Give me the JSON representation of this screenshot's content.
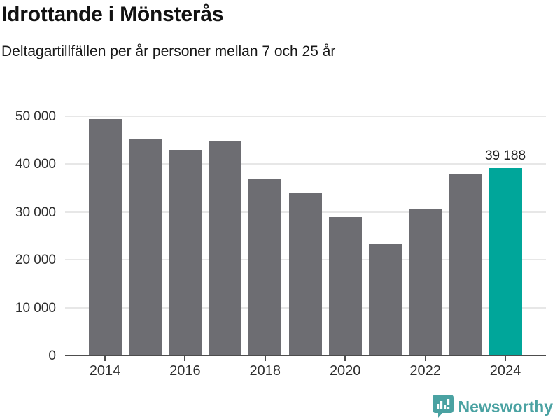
{
  "header": {
    "title": "Idrottande i Mönsterås",
    "subtitle": "Deltagartillfällen per år personer mellan 7 och 25 år"
  },
  "chart_data": {
    "type": "bar",
    "title": "Idrottande i Mönsterås",
    "subtitle": "Deltagartillfällen per år personer mellan 7 och 25 år",
    "categories": [
      2014,
      2015,
      2016,
      2017,
      2018,
      2019,
      2020,
      2021,
      2022,
      2023,
      2024
    ],
    "values": [
      49500,
      45300,
      43000,
      44900,
      36900,
      33900,
      29000,
      23400,
      30550,
      37950,
      39188
    ],
    "highlighted_category": 2024,
    "value_label": {
      "category": 2024,
      "text": "39 188"
    },
    "xlabel": "",
    "ylabel": "",
    "ylim": [
      0,
      50000
    ],
    "grid": true,
    "legend": "none",
    "y_ticks": [
      {
        "value": 0,
        "label": "0"
      },
      {
        "value": 10000,
        "label": "10 000"
      },
      {
        "value": 20000,
        "label": "20 000"
      },
      {
        "value": 30000,
        "label": "30 000"
      },
      {
        "value": 40000,
        "label": "40 000"
      },
      {
        "value": 50000,
        "label": "50 000"
      }
    ],
    "x_tick_labels": [
      "2014",
      "2016",
      "2018",
      "2020",
      "2022",
      "2024"
    ],
    "colors": {
      "bar": "#6d6d72",
      "highlight": "#00a69a",
      "gridline": "#e7e7e7",
      "axis": "#4d4d4d"
    }
  },
  "footer": {
    "brand": "Newsworthy",
    "brand_color": "#4aa2a2",
    "logo_icon": "bar-chart-speech-bubble-icon"
  }
}
